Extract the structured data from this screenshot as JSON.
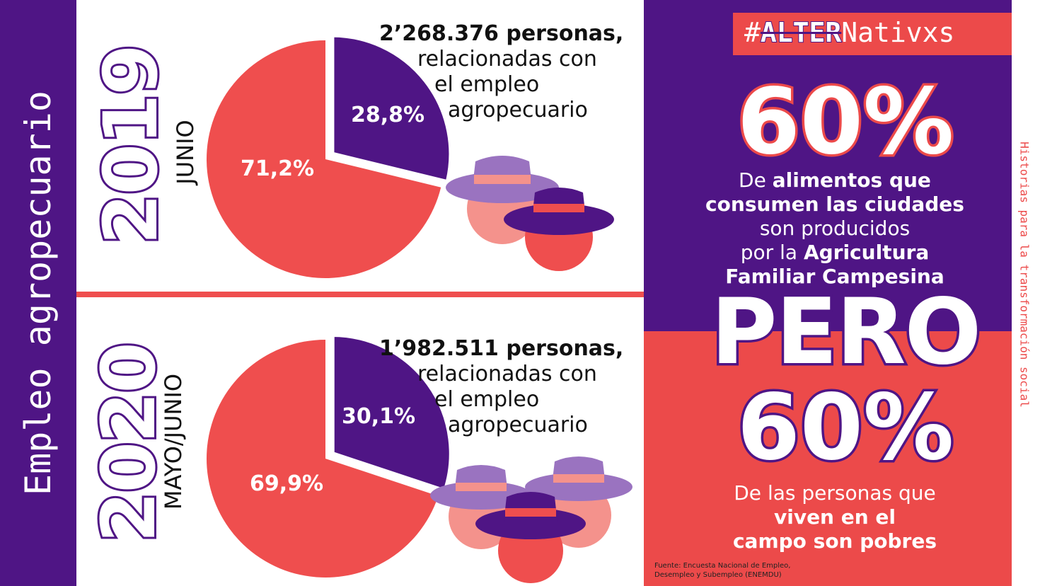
{
  "side_title": "Empleo agropecuario",
  "side_tag": "Historias para la transformación social",
  "brand": {
    "hash": "#",
    "alter": "ALTER",
    "rest": "Nativxs"
  },
  "colors": {
    "purple": "#4f1585",
    "red": "#ef4e4e",
    "light_purple": "#9a73c0",
    "pink": "#f4928c"
  },
  "chart_data": [
    {
      "type": "pie",
      "year": "2019",
      "period": "JUNIO",
      "headline": {
        "lead": "2’268.376 personas,",
        "l1": "relacionadas con",
        "l2": "el empleo",
        "l3": "agropecuario"
      },
      "slices": [
        {
          "label": "28,8%",
          "value": 28.8,
          "color": "#4f1585",
          "exploded": true
        },
        {
          "label": "71,2%",
          "value": 71.2,
          "color": "#ef4e4e",
          "exploded": false
        }
      ]
    },
    {
      "type": "pie",
      "year": "2020",
      "period": "MAYO/JUNIO",
      "headline": {
        "lead": "1’982.511 personas,",
        "l1": "relacionadas con",
        "l2": "el empleo",
        "l3": "agropecuario"
      },
      "slices": [
        {
          "label": "30,1%",
          "value": 30.1,
          "color": "#4f1585",
          "exploded": true
        },
        {
          "label": "69,9%",
          "value": 69.9,
          "color": "#ef4e4e",
          "exploded": false
        }
      ]
    }
  ],
  "panel": {
    "big_top": "60%",
    "stmt1": {
      "a": "De ",
      "b": "alimentos que",
      "c": "consumen las ciudades",
      "d": "son producidos",
      "e": "por la ",
      "f": "Agricultura",
      "g": "Familiar Campesina"
    },
    "pero": "PERO",
    "big_bottom": "60%",
    "stmt2": {
      "a": "De las personas que",
      "b": "viven en el",
      "c": "campo son pobres"
    }
  },
  "source": {
    "line1": "Fuente: Encuesta Nacional de Empleo,",
    "line2": "Desempleo y Subempleo (ENEMDU)"
  }
}
